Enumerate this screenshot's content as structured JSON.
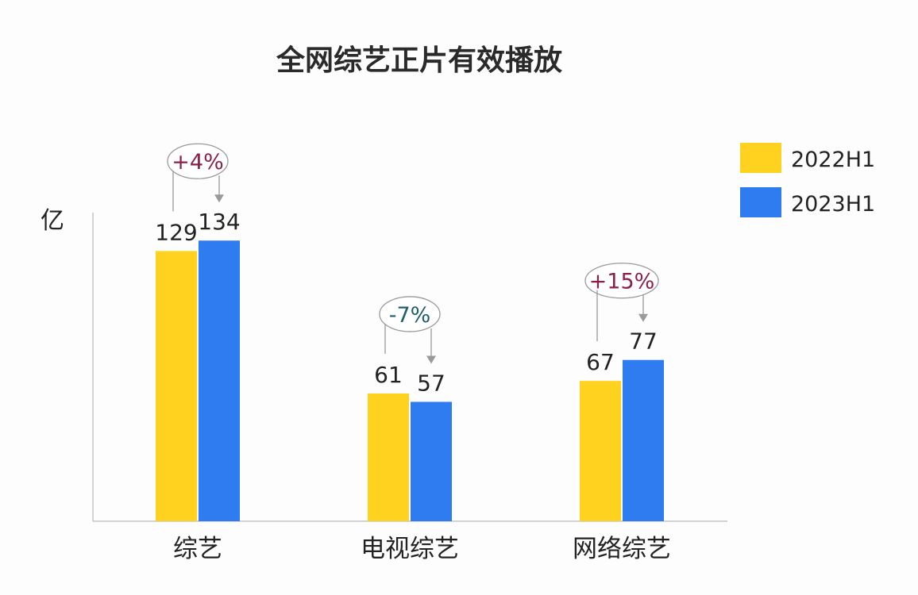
{
  "chart_data": {
    "type": "bar",
    "title": "全网综艺正片有效播放",
    "ylabel": "亿",
    "xlabel": "",
    "categories": [
      "综艺",
      "电视综艺",
      "网络综艺"
    ],
    "series": [
      {
        "name": "2022H1",
        "values": [
          129,
          61,
          67
        ],
        "color": "#FFD21F"
      },
      {
        "name": "2023H1",
        "values": [
          134,
          57,
          77
        ],
        "color": "#2F7BF0"
      }
    ],
    "ylim": [
      0,
      140
    ],
    "grid": false,
    "legend": "top-right",
    "annotations": [
      {
        "category": "综艺",
        "text": "+4%",
        "color": "#8B1E4A"
      },
      {
        "category": "电视综艺",
        "text": "-7%",
        "color": "#1E5F6E"
      },
      {
        "category": "网络综艺",
        "text": "+15%",
        "color": "#8B1E4A"
      }
    ]
  }
}
